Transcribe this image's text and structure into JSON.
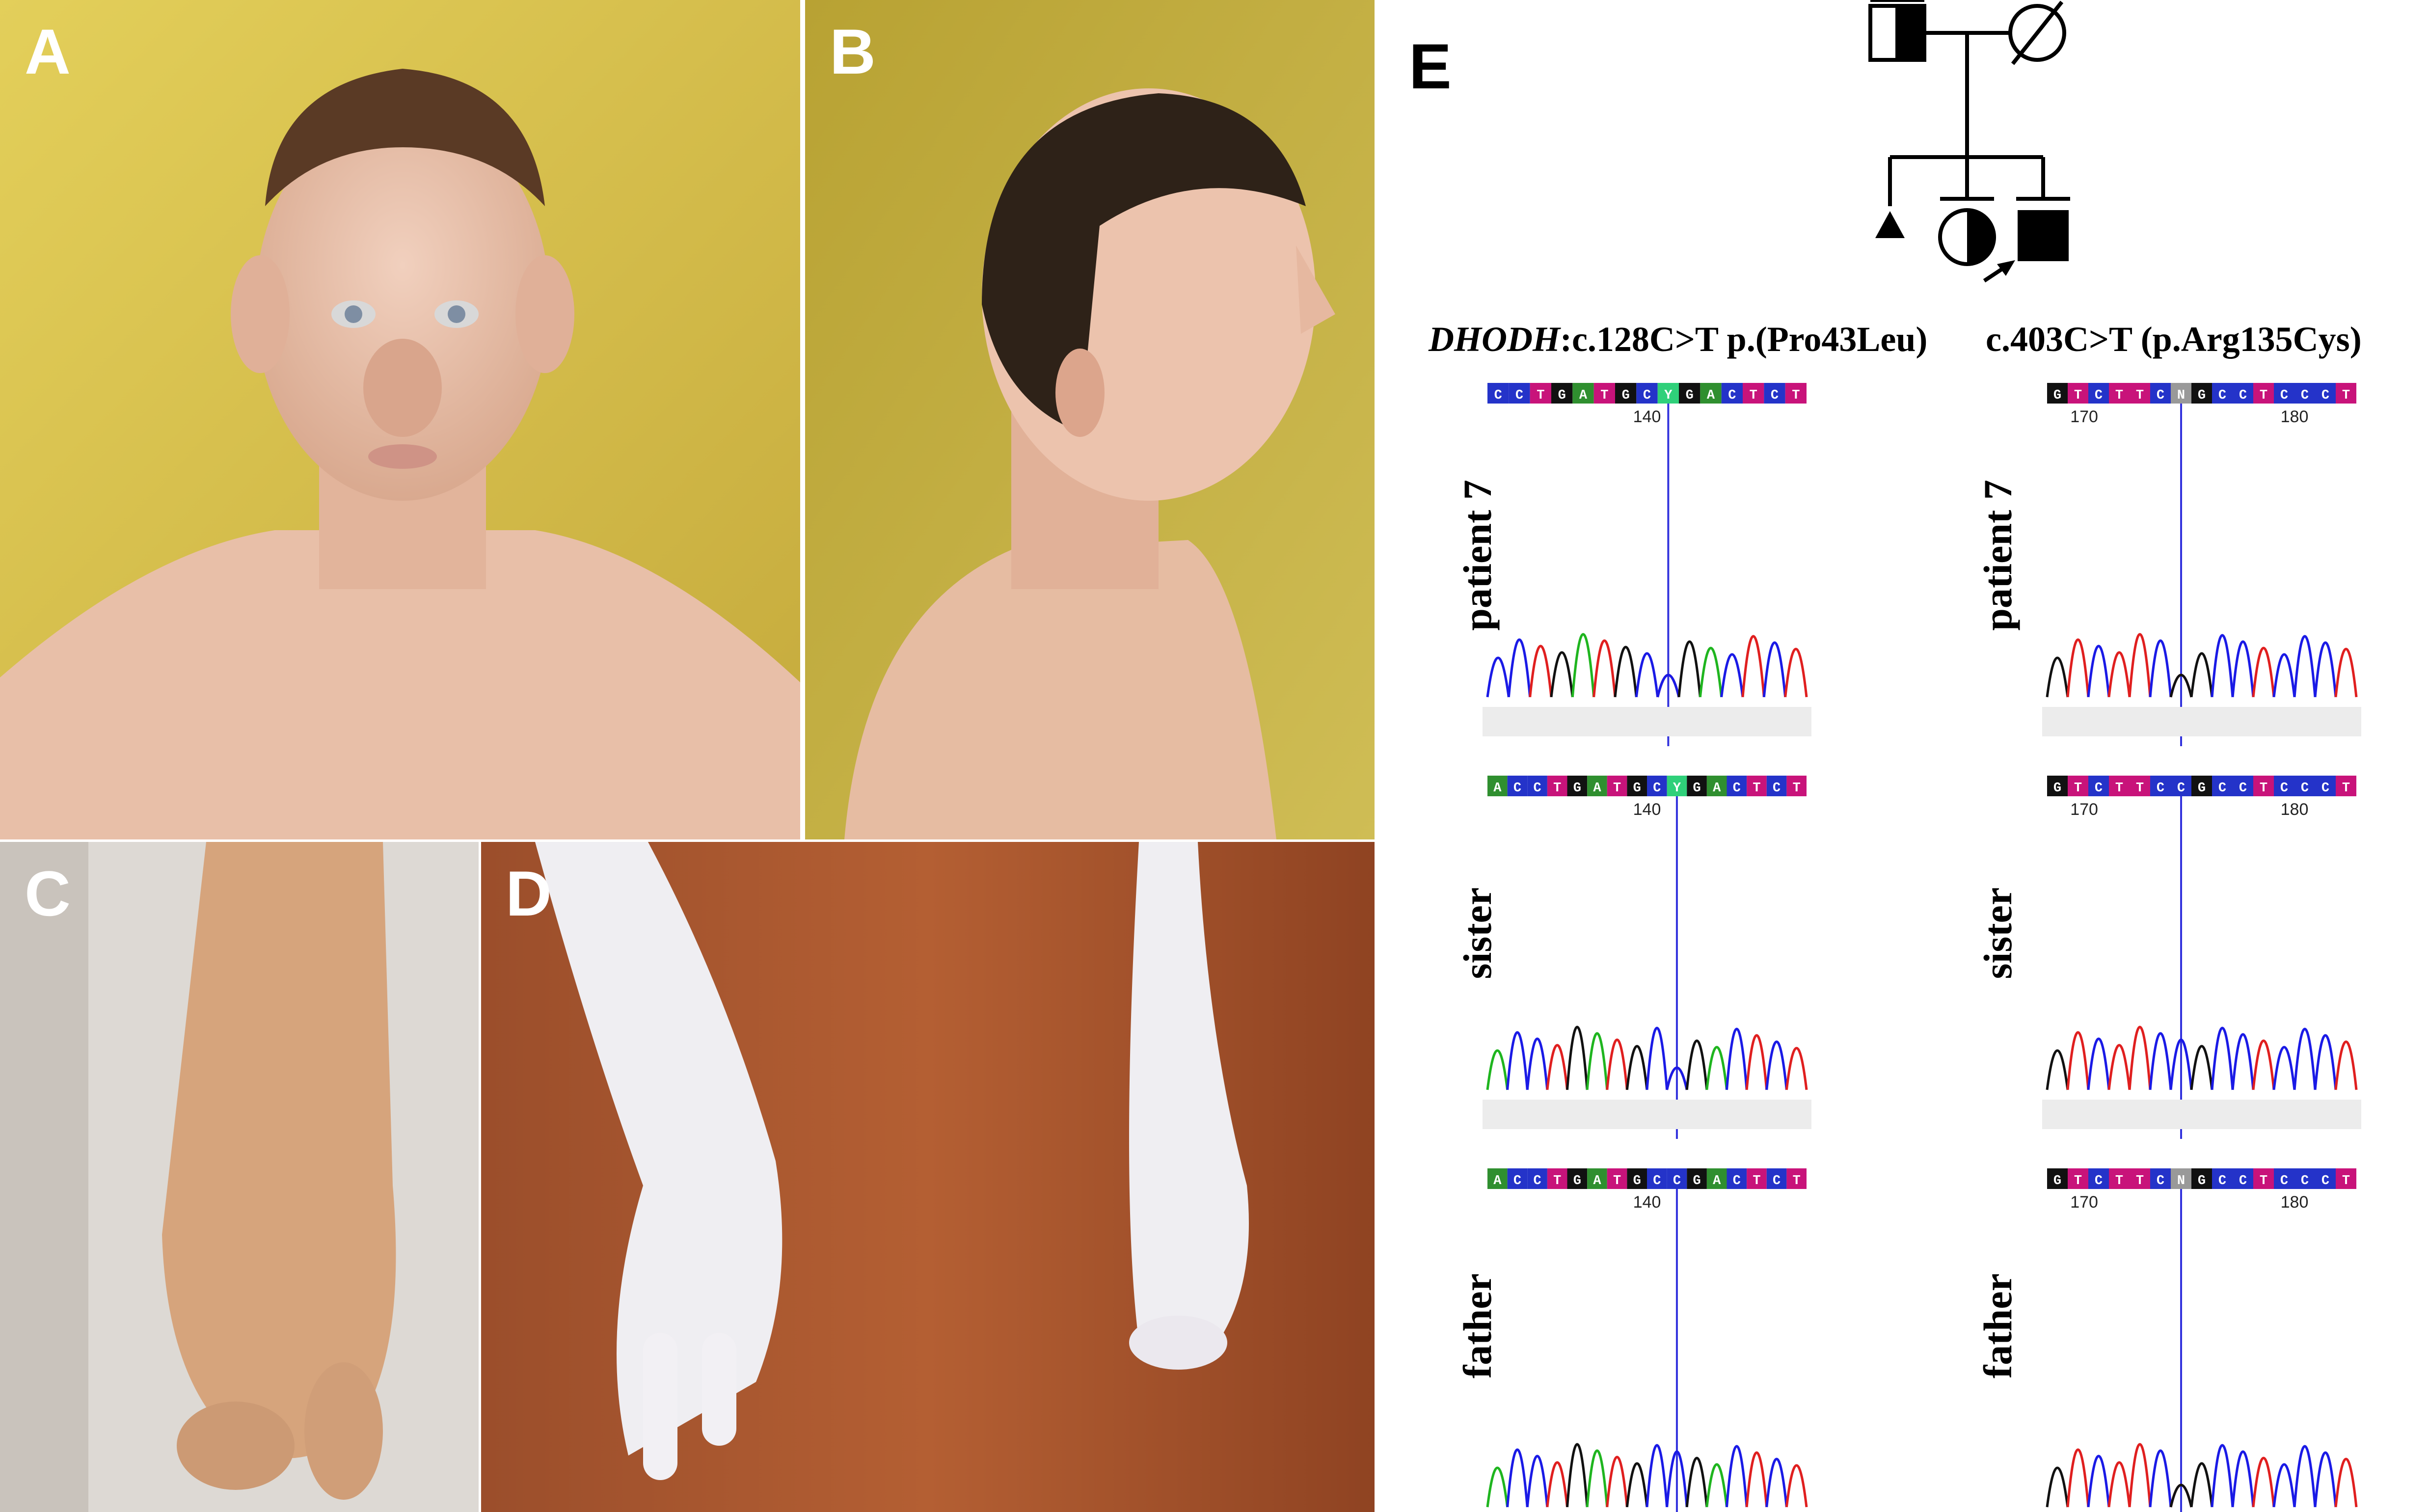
{
  "panels": {
    "A": "A",
    "B": "B",
    "C": "C",
    "D": "D",
    "E": "E"
  },
  "photos": {
    "A": "portrait-front",
    "B": "portrait-profile",
    "C": "hand-closeup",
    "D": "hands-on-table"
  },
  "panel_e": {
    "mutation1": {
      "gene": "DHODH",
      "change": ":c.128C>T p.(Pro43Leu)"
    },
    "mutation2": {
      "change": "c.403C>T (p.Arg135Cys)"
    },
    "samples": [
      "patient 7",
      "sister",
      "father"
    ],
    "traces_left": [
      {
        "seq": [
          "C",
          "C",
          "T",
          "G",
          "A",
          "T",
          "G",
          "C",
          "Y",
          "G",
          "A",
          "C",
          "T",
          "C",
          "T"
        ],
        "ticks": [
          "140"
        ]
      },
      {
        "seq": [
          "A",
          "C",
          "C",
          "T",
          "G",
          "A",
          "T",
          "G",
          "C",
          "Y",
          "G",
          "A",
          "C",
          "T",
          "C",
          "T"
        ],
        "ticks": [
          "140"
        ]
      },
      {
        "seq": [
          "A",
          "C",
          "C",
          "T",
          "G",
          "A",
          "T",
          "G",
          "C",
          "C",
          "G",
          "A",
          "C",
          "T",
          "C",
          "T"
        ],
        "ticks": [
          "140"
        ]
      }
    ],
    "traces_right": [
      {
        "seq": [
          "G",
          "T",
          "C",
          "T",
          "T",
          "C",
          "N",
          "G",
          "C",
          "C",
          "T",
          "C",
          "C",
          "C",
          "T"
        ],
        "ticks": [
          "170",
          "180"
        ]
      },
      {
        "seq": [
          "G",
          "T",
          "C",
          "T",
          "T",
          "C",
          "C",
          "G",
          "C",
          "C",
          "T",
          "C",
          "C",
          "C",
          "T"
        ],
        "ticks": [
          "170",
          "180"
        ]
      },
      {
        "seq": [
          "G",
          "T",
          "C",
          "T",
          "T",
          "C",
          "N",
          "G",
          "C",
          "C",
          "T",
          "C",
          "C",
          "C",
          "T"
        ],
        "ticks": [
          "170",
          "180"
        ]
      }
    ]
  }
}
